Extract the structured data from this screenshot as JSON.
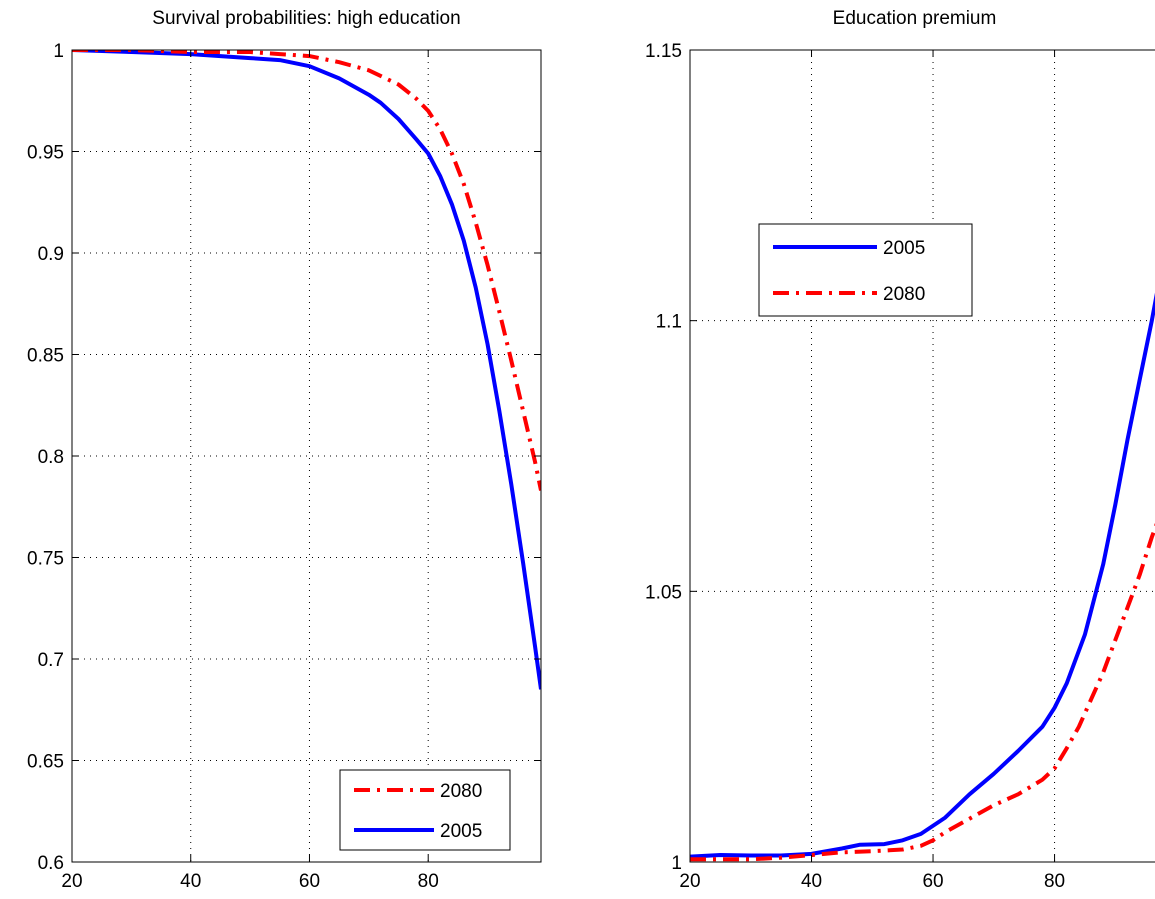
{
  "chart_data": [
    {
      "type": "line",
      "title": "Survival probabilities: high education",
      "xlabel": "",
      "ylabel": "",
      "xlim": [
        20,
        99
      ],
      "ylim": [
        0.6,
        1
      ],
      "xticks": [
        20,
        40,
        60,
        80
      ],
      "xtick_labels": [
        "20",
        "40",
        "60",
        "80"
      ],
      "yticks": [
        0.6,
        0.65,
        0.7,
        0.75,
        0.8,
        0.85,
        0.9,
        0.95,
        1
      ],
      "ytick_labels": [
        "0.6",
        "0.65",
        "0.7",
        "0.75",
        "0.8",
        "0.85",
        "0.9",
        "0.95",
        "1"
      ],
      "grid": true,
      "legend_position": "bottom-right",
      "legend_order": [
        "2080",
        "2005"
      ],
      "series": [
        {
          "name": "2005",
          "color": "#0000ff",
          "style": "solid",
          "x": [
            20,
            30,
            40,
            50,
            55,
            60,
            65,
            70,
            72,
            75,
            78,
            80,
            82,
            84,
            86,
            88,
            90,
            92,
            94,
            96,
            98,
            99
          ],
          "y": [
            1.0,
            0.999,
            0.998,
            0.996,
            0.995,
            0.992,
            0.986,
            0.978,
            0.974,
            0.966,
            0.956,
            0.949,
            0.938,
            0.924,
            0.906,
            0.883,
            0.855,
            0.822,
            0.786,
            0.747,
            0.706,
            0.685
          ]
        },
        {
          "name": "2080",
          "color": "#ff0000",
          "style": "dashdot",
          "x": [
            20,
            30,
            40,
            50,
            55,
            60,
            65,
            70,
            75,
            78,
            80,
            82,
            84,
            86,
            88,
            90,
            92,
            94,
            96,
            98,
            99
          ],
          "y": [
            1.0,
            1.0,
            0.999,
            0.999,
            0.998,
            0.997,
            0.994,
            0.99,
            0.983,
            0.976,
            0.97,
            0.961,
            0.949,
            0.934,
            0.915,
            0.894,
            0.871,
            0.847,
            0.822,
            0.797,
            0.783
          ]
        }
      ]
    },
    {
      "type": "line",
      "title": "Education premium",
      "xlabel": "",
      "ylabel": "",
      "xlim": [
        20,
        99
      ],
      "ylim": [
        1,
        1.15
      ],
      "xticks": [
        20,
        40,
        60,
        80
      ],
      "xtick_labels": [
        "20",
        "40",
        "60",
        "80"
      ],
      "yticks": [
        1,
        1.05,
        1.1,
        1.15
      ],
      "ytick_labels": [
        "1",
        "1.05",
        "1.1",
        "1.15"
      ],
      "grid": true,
      "legend_position": "upper-left",
      "legend_order": [
        "2005",
        "2080"
      ],
      "series": [
        {
          "name": "2005",
          "color": "#0000ff",
          "style": "solid",
          "x": [
            20,
            25,
            30,
            35,
            40,
            45,
            48,
            52,
            55,
            58,
            62,
            66,
            70,
            74,
            78,
            80,
            82,
            85,
            88,
            90,
            92,
            94,
            96,
            98,
            99
          ],
          "y": [
            1.001,
            1.0013,
            1.0012,
            1.0012,
            1.0015,
            1.0025,
            1.0032,
            1.0033,
            1.004,
            1.0052,
            1.0082,
            1.0125,
            1.0163,
            1.0205,
            1.025,
            1.0285,
            1.033,
            1.042,
            1.055,
            1.066,
            1.078,
            1.089,
            1.1,
            1.112,
            1.12
          ]
        },
        {
          "name": "2080",
          "color": "#ff0000",
          "style": "dashdot",
          "x": [
            20,
            25,
            30,
            35,
            40,
            45,
            50,
            55,
            58,
            60,
            62,
            66,
            70,
            74,
            78,
            80,
            82,
            84,
            86,
            88,
            90,
            92,
            94,
            96,
            98,
            99
          ],
          "y": [
            1.0005,
            1.0005,
            1.0005,
            1.0008,
            1.0013,
            1.0018,
            1.002,
            1.0023,
            1.003,
            1.004,
            1.0055,
            1.008,
            1.0105,
            1.0125,
            1.0152,
            1.0173,
            1.021,
            1.025,
            1.03,
            1.035,
            1.041,
            1.047,
            1.053,
            1.06,
            1.066,
            1.07
          ]
        }
      ]
    }
  ]
}
